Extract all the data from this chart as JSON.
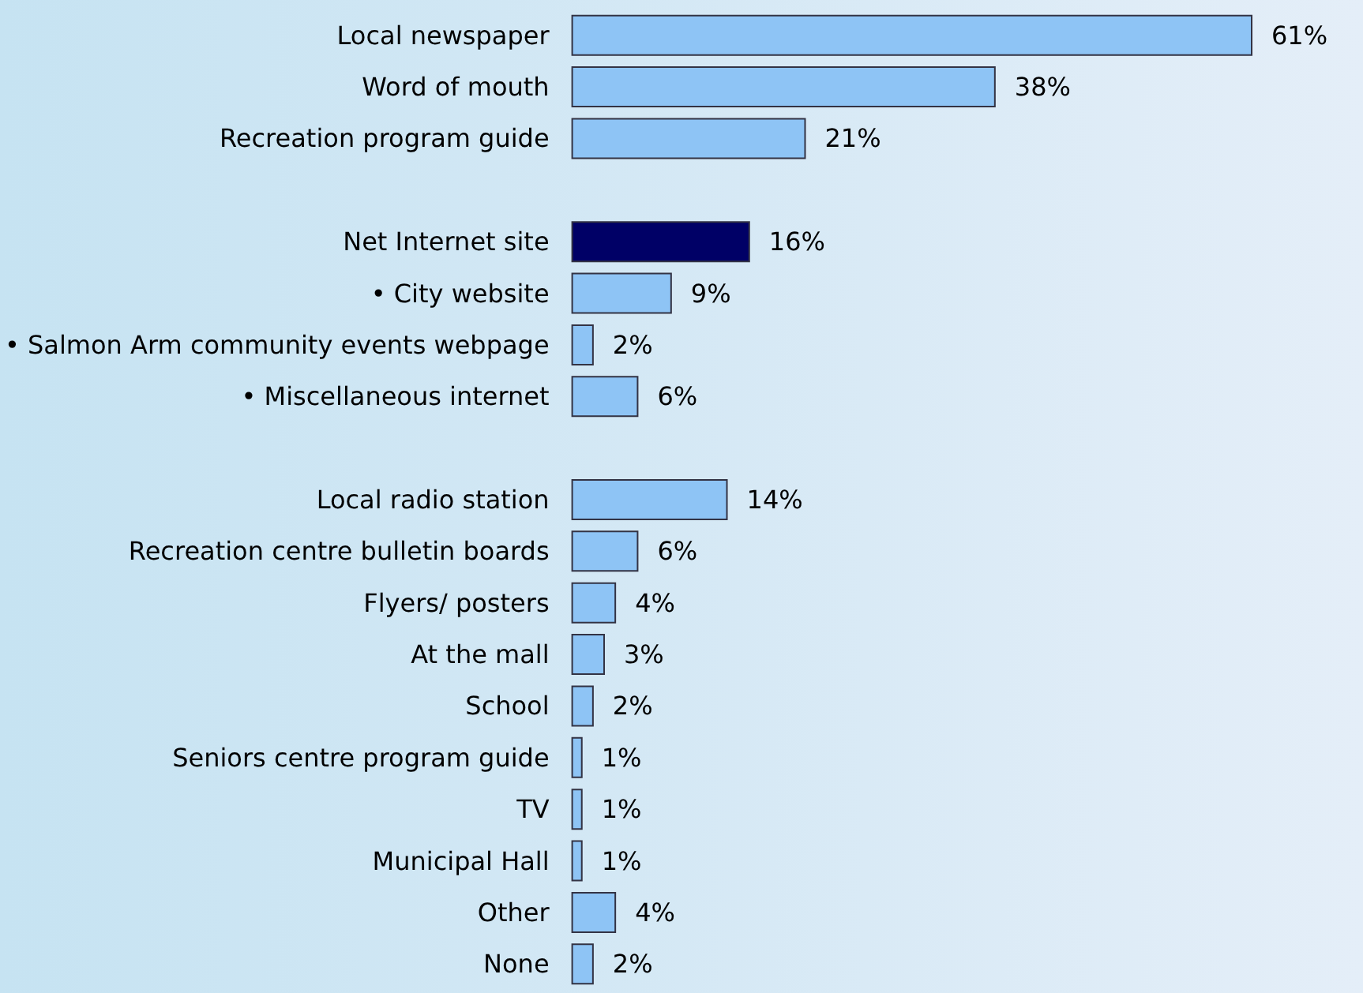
{
  "chart_data": {
    "type": "bar",
    "orientation": "horizontal",
    "categories": [
      "Local newspaper",
      "Word of mouth",
      "Recreation program guide",
      null,
      "Net Internet site",
      "• City website",
      "• Salmon Arm community events webpage",
      "• Miscellaneous internet",
      null,
      "Local radio station",
      "Recreation centre bulletin boards",
      "Flyers/ posters",
      "At the mall",
      "School",
      "Seniors centre program guide",
      "TV",
      "Municipal Hall",
      "Other",
      "None"
    ],
    "values": [
      61,
      38,
      21,
      null,
      16,
      9,
      2,
      6,
      null,
      14,
      6,
      4,
      3,
      2,
      1,
      1,
      1,
      4,
      2
    ],
    "value_labels": [
      "61%",
      "38%",
      "21%",
      null,
      "16%",
      "9%",
      "2%",
      "6%",
      null,
      "14%",
      "6%",
      "4%",
      "3%",
      "2%",
      "1%",
      "1%",
      "1%",
      "4%",
      "2%"
    ],
    "colors": [
      "#8ec4f5",
      "#8ec4f5",
      "#8ec4f5",
      null,
      "#000066",
      "#8ec4f5",
      "#8ec4f5",
      "#8ec4f5",
      null,
      "#8ec4f5",
      "#8ec4f5",
      "#8ec4f5",
      "#8ec4f5",
      "#8ec4f5",
      "#8ec4f5",
      "#8ec4f5",
      "#8ec4f5",
      "#8ec4f5",
      "#8ec4f5"
    ]
  }
}
